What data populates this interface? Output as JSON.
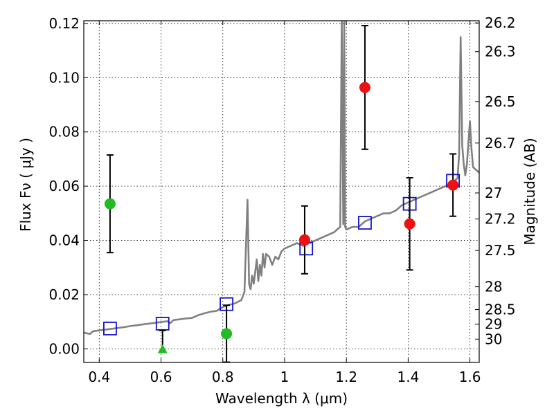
{
  "chart_data": {
    "type": "scatter",
    "xlabel": "Wavelength  λ (μm)",
    "ylabel": "Flux  Fν  ( μJy )",
    "y2label": "Magnitude (AB)",
    "xlim": [
      0.35,
      1.63
    ],
    "ylim": [
      -0.005,
      0.121
    ],
    "x_ticks": [
      0.4,
      0.6,
      0.8,
      1.0,
      1.2,
      1.4,
      1.6
    ],
    "x_tick_labels": [
      "0.4",
      "0.6",
      "0.8",
      "1",
      "1.2",
      "1.4",
      "1.6"
    ],
    "y_ticks": [
      0.0,
      0.02,
      0.04,
      0.06,
      0.08,
      0.1,
      0.12
    ],
    "y_tick_labels": [
      "0.00",
      "0.02",
      "0.04",
      "0.06",
      "0.08",
      "0.10",
      "0.12"
    ],
    "magnitude_ticks": [
      {
        "label": "26.2",
        "flux": 0.1202
      },
      {
        "label": "26.3",
        "flux": 0.1096
      },
      {
        "label": "26.5",
        "flux": 0.0912
      },
      {
        "label": "26.7",
        "flux": 0.0759
      },
      {
        "label": "27",
        "flux": 0.0575
      },
      {
        "label": "27.2",
        "flux": 0.0479
      },
      {
        "label": "27.5",
        "flux": 0.0363
      },
      {
        "label": "28",
        "flux": 0.0229
      },
      {
        "label": "28.5",
        "flux": 0.0145
      },
      {
        "label": "29",
        "flux": 0.0091
      },
      {
        "label": "30",
        "flux": 0.0036
      }
    ],
    "grid": true,
    "colors": {
      "model": "#808080",
      "green": "#22bb22",
      "red": "#ee1111",
      "blue": "#1111cc",
      "error": "#000000"
    },
    "model_spectrum": {
      "x": [
        0.35,
        0.37,
        0.38,
        0.4,
        0.42,
        0.44,
        0.46,
        0.48,
        0.5,
        0.52,
        0.54,
        0.56,
        0.58,
        0.6,
        0.62,
        0.63,
        0.64,
        0.66,
        0.68,
        0.7,
        0.72,
        0.74,
        0.76,
        0.78,
        0.8,
        0.82,
        0.84,
        0.86,
        0.87,
        0.88,
        0.885,
        0.89,
        0.895,
        0.9,
        0.91,
        0.915,
        0.92,
        0.925,
        0.93,
        0.935,
        0.94,
        0.95,
        0.96,
        0.97,
        0.98,
        0.99,
        1.0,
        1.02,
        1.04,
        1.06,
        1.08,
        1.1,
        1.12,
        1.14,
        1.16,
        1.17,
        1.18,
        1.185,
        1.19,
        1.193,
        1.196,
        1.2,
        1.22,
        1.24,
        1.26,
        1.28,
        1.3,
        1.32,
        1.34,
        1.36,
        1.38,
        1.4,
        1.42,
        1.44,
        1.46,
        1.48,
        1.5,
        1.52,
        1.54,
        1.56,
        1.565,
        1.57,
        1.575,
        1.58,
        1.585,
        1.59,
        1.6,
        1.605,
        1.61,
        1.62,
        1.63
      ],
      "y": [
        0.006,
        0.0055,
        0.0065,
        0.0068,
        0.0071,
        0.0074,
        0.0077,
        0.008,
        0.0084,
        0.0087,
        0.009,
        0.0093,
        0.0096,
        0.0099,
        0.0102,
        0.0095,
        0.0106,
        0.0109,
        0.0112,
        0.0114,
        0.0124,
        0.0131,
        0.0137,
        0.014,
        0.0154,
        0.0162,
        0.0168,
        0.018,
        0.021,
        0.055,
        0.024,
        0.022,
        0.027,
        0.024,
        0.033,
        0.025,
        0.031,
        0.027,
        0.035,
        0.03,
        0.035,
        0.034,
        0.031,
        0.034,
        0.033,
        0.036,
        0.037,
        0.038,
        0.039,
        0.038,
        0.039,
        0.04,
        0.041,
        0.042,
        0.043,
        0.044,
        0.045,
        0.121,
        0.046,
        0.121,
        0.045,
        0.044,
        0.045,
        0.045,
        0.047,
        0.048,
        0.049,
        0.05,
        0.05,
        0.051,
        0.053,
        0.054,
        0.055,
        0.056,
        0.057,
        0.058,
        0.059,
        0.06,
        0.061,
        0.063,
        0.072,
        0.115,
        0.075,
        0.068,
        0.064,
        0.068,
        0.084,
        0.074,
        0.067,
        0.066,
        0.065
      ]
    },
    "green_points": [
      {
        "x": 0.435,
        "y": 0.0535,
        "err": 0.018
      },
      {
        "x": 0.812,
        "y": 0.0056,
        "err": 0.0105
      }
    ],
    "green_upper_limit": {
      "x": 0.605,
      "y": -0.0003,
      "ymax": 0.0068
    },
    "red_points": [
      {
        "x": 1.065,
        "y": 0.0402,
        "err": 0.0125
      },
      {
        "x": 1.26,
        "y": 0.0964,
        "err": 0.0228
      },
      {
        "x": 1.405,
        "y": 0.0461,
        "err": 0.017
      },
      {
        "x": 1.545,
        "y": 0.0604,
        "err": 0.0115
      }
    ],
    "blue_squares": [
      {
        "x": 0.435,
        "y": 0.0075
      },
      {
        "x": 0.605,
        "y": 0.0093
      },
      {
        "x": 0.812,
        "y": 0.0165
      },
      {
        "x": 1.07,
        "y": 0.037
      },
      {
        "x": 1.26,
        "y": 0.0465
      },
      {
        "x": 1.405,
        "y": 0.0535
      },
      {
        "x": 1.545,
        "y": 0.062
      }
    ]
  }
}
